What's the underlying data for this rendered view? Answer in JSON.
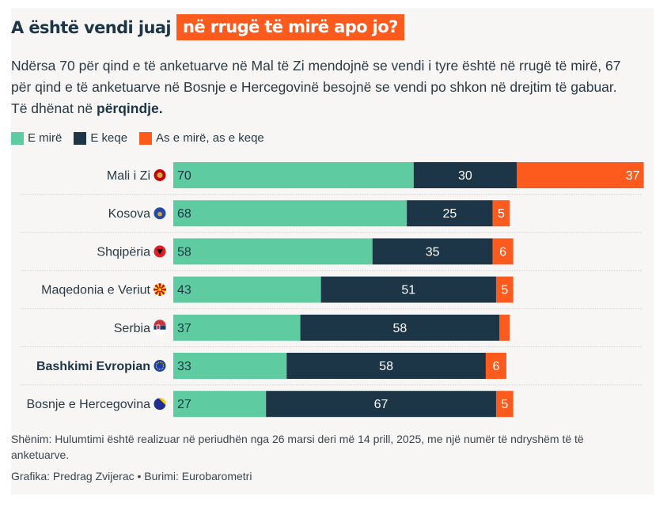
{
  "header": {
    "title_part1": "A është vendi juaj",
    "title_part2_highlight": "në rrugë të mirë apo jo?",
    "subtitle_text": "Ndërsa 70 për qind e të anketuarve në Mal të Zi mendojnë se vendi i tyre është në rrugë të mirë, 67 për qind e të anketuarve në Bosnje e Hercegovinë besojnë se vendi po shkon në drejtim të gabuar. Të dhënat në ",
    "subtitle_bold": "përqindje."
  },
  "colors": {
    "good": "#5ecba1",
    "bad": "#1d3647",
    "neither": "#fd5a1e",
    "highlight": "#fd5a1e",
    "title": "#1d3647"
  },
  "chart_data": {
    "type": "bar",
    "orientation": "horizontal",
    "stacked": true,
    "title": "A është vendi juaj në rrugë të mirë apo jo?",
    "unit": "%",
    "legend_position": "top-left",
    "categories": [
      "Mali i Zi",
      "Kosova",
      "Shqipëria",
      "Maqedonia e Veriut",
      "Serbia",
      "Bashkimi Evropian",
      "Bosnje e Hercegovina"
    ],
    "category_flags": [
      "montenegro-flag-icon",
      "kosovo-flag-icon",
      "albania-flag-icon",
      "north-macedonia-flag-icon",
      "serbia-flag-icon",
      "eu-flag-icon",
      "bosnia-flag-icon"
    ],
    "bold_categories": [
      "Bashkimi Evropian"
    ],
    "series": [
      {
        "name": "E mirë",
        "color": "#5ecba1",
        "values": [
          70,
          68,
          58,
          43,
          37,
          33,
          27
        ],
        "labels": [
          "70",
          "68",
          "58",
          "43",
          "37",
          "33",
          "27"
        ]
      },
      {
        "name": "E keqe",
        "color": "#1d3647",
        "values": [
          30,
          25,
          35,
          51,
          58,
          58,
          67
        ],
        "labels": [
          "30",
          "25",
          "35",
          "51",
          "58",
          "58",
          "67"
        ]
      },
      {
        "name": "As e mirë, as e keqe",
        "color": "#fd5a1e",
        "values": [
          37,
          5,
          6,
          5,
          3,
          6,
          5
        ],
        "labels": [
          "37",
          "5",
          "6",
          "5",
          "",
          "6",
          "5"
        ]
      }
    ],
    "xlim": [
      0,
      137
    ],
    "grid": false
  },
  "legend": [
    {
      "label": "E mirë",
      "color": "#5ecba1"
    },
    {
      "label": "E keqe",
      "color": "#1d3647"
    },
    {
      "label": "As e mirë, as e keqe",
      "color": "#fd5a1e"
    }
  ],
  "footer": {
    "note": "Shënim: Hulumtimi është realizuar në periudhën nga 26 marsi deri më 14 prill, 2025, me një numër të ndryshëm të të anketuarve.",
    "credit": "Grafika: Predrag Zvijerac • Burimi: Eurobarometri"
  }
}
